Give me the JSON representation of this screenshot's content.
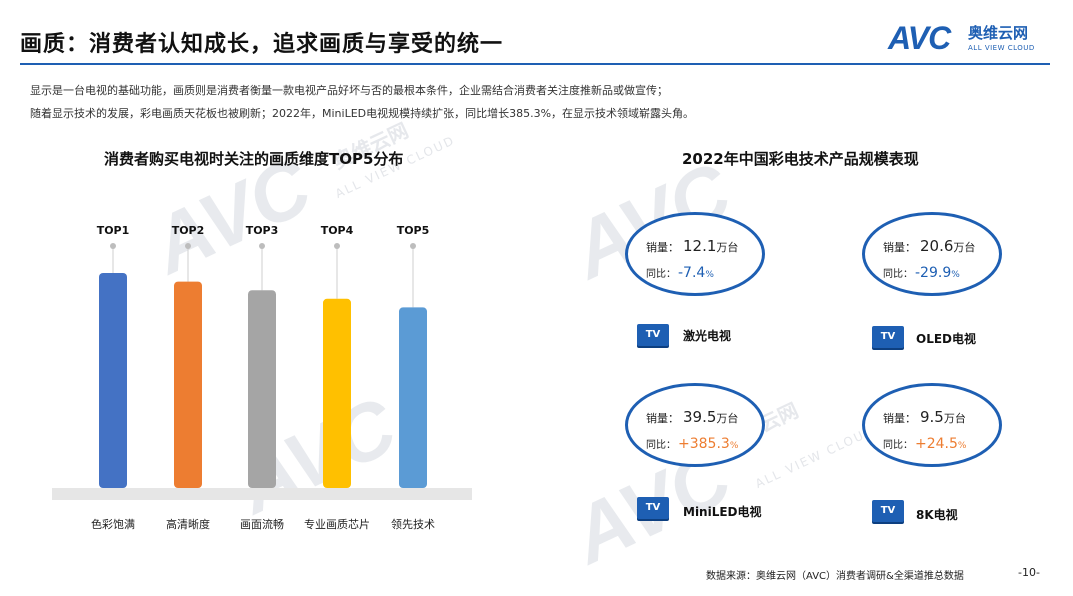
{
  "header": {
    "title": "画质：消费者认知成长，追求画质与享受的统一",
    "logo_mark": "AVC",
    "logo_cn": "奥维云网",
    "logo_en": "ALL VIEW CLOUD"
  },
  "intro": {
    "line1": "显示是一台电视的基础功能，画质则是消费者衡量一款电视产品好坏与否的最根本条件，企业需结合消费者关注度推新品或做宣传；",
    "line2": "随着显示技术的发展，彩电画质天花板也被刷新；2022年，MiniLED电视规模持续扩张，同比增长385.3%，在显示技术领域崭露头角。"
  },
  "watermark": {
    "mark": "AVC",
    "cn": "奥维云网",
    "en": "ALL VIEW CLOUD"
  },
  "chart_data": [
    {
      "type": "bar",
      "title": "消费者购买电视时关注的画质维度TOP5分布",
      "categories": [
        "色彩饱满",
        "高清晰度",
        "画面流畅",
        "专业画质芯片",
        "领先技术"
      ],
      "rank_labels": [
        "TOP1",
        "TOP2",
        "TOP3",
        "TOP4",
        "TOP5"
      ],
      "values": [
        5,
        4.8,
        4.6,
        4.4,
        4.2
      ],
      "colors": [
        "#4472c4",
        "#ed7d31",
        "#a5a5a5",
        "#ffc000",
        "#5b9bd5"
      ],
      "xlabel": "",
      "ylabel": ""
    },
    {
      "type": "table",
      "title": "2022年中国彩电技术产品规模表现",
      "sales_label": "销量：",
      "yoy_label": "同比：",
      "unit": "万台",
      "pct_unit": "%",
      "tv_badge": "TV",
      "items": [
        {
          "name": "激光电视",
          "sales": "12.1",
          "yoy": "-7.4",
          "trend": "neg"
        },
        {
          "name": "OLED电视",
          "sales": "20.6",
          "yoy": "-29.9",
          "trend": "neg"
        },
        {
          "name": "MiniLED电视",
          "sales": "39.5",
          "yoy": "+385.3",
          "trend": "pos"
        },
        {
          "name": "8K电视",
          "sales": "9.5",
          "yoy": "+24.5",
          "trend": "pos"
        }
      ]
    }
  ],
  "footer": {
    "source": "数据来源：奥维云网（AVC）消费者调研&全渠道推总数据",
    "page": "-10-"
  }
}
